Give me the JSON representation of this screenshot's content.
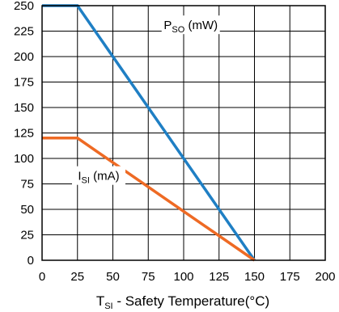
{
  "chart_data": {
    "type": "line",
    "title": "",
    "xlabel": {
      "main": "T",
      "sub": "SI",
      "rest": " - Safety Temperature(°C)"
    },
    "ylabel": "",
    "xlim": [
      0,
      200
    ],
    "ylim": [
      0,
      250
    ],
    "xticks": [
      "0",
      "25",
      "50",
      "75",
      "100",
      "125",
      "150",
      "175",
      "200"
    ],
    "yticks": [
      "0",
      "25",
      "50",
      "75",
      "100",
      "125",
      "150",
      "175",
      "200",
      "225",
      "250"
    ],
    "grid": true,
    "series": [
      {
        "name_main": "P",
        "name_sub": "SO",
        "name_rest": " (mW)",
        "color": "#1f7fc4",
        "points": [
          [
            0,
            250
          ],
          [
            25,
            250
          ],
          [
            150,
            0
          ]
        ]
      },
      {
        "name_main": "I",
        "name_sub": "SI",
        "name_rest": " (mA)",
        "color": "#ee6a24",
        "points": [
          [
            0,
            120
          ],
          [
            25,
            120
          ],
          [
            150,
            0
          ]
        ]
      }
    ]
  }
}
